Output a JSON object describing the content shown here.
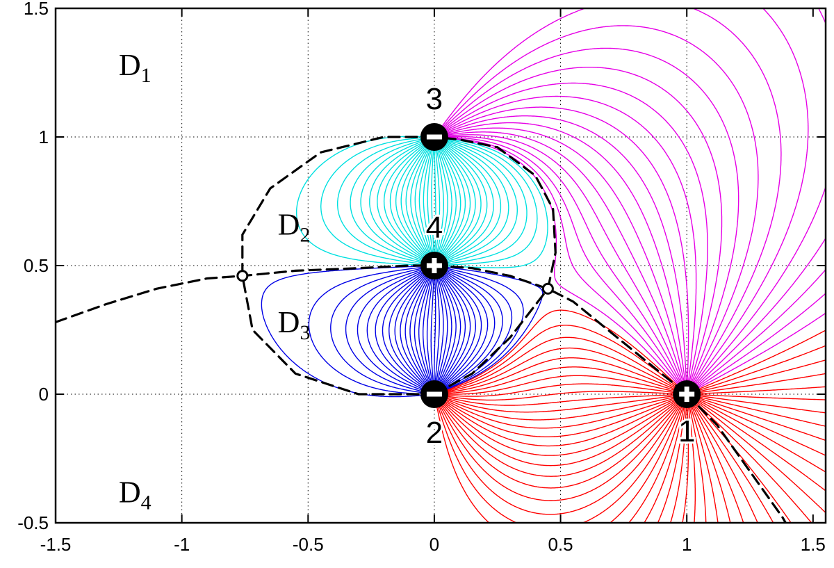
{
  "chart_data": {
    "type": "line",
    "title": "",
    "xlabel": "",
    "ylabel": "",
    "xlim": [
      -1.5,
      1.55
    ],
    "ylim": [
      -0.5,
      1.5
    ],
    "grid": "dotted",
    "x_ticks": [
      -1.5,
      -1,
      -0.5,
      0,
      0.5,
      1,
      1.5
    ],
    "x_tick_labels": [
      "-1.5",
      "-1",
      "-0.5",
      "0",
      "0.5",
      "1",
      "1.5"
    ],
    "y_ticks": [
      -0.5,
      0,
      0.5,
      1,
      1.5
    ],
    "y_tick_labels": [
      "-0.5",
      "0",
      "0.5",
      "1",
      "1.5"
    ],
    "charges": [
      {
        "label": "1",
        "sign": "+",
        "x": 1.0,
        "y": 0.0
      },
      {
        "label": "2",
        "sign": "−",
        "x": 0.0,
        "y": 0.0
      },
      {
        "label": "3",
        "sign": "−",
        "x": 0.0,
        "y": 1.0
      },
      {
        "label": "4",
        "sign": "+",
        "x": 0.0,
        "y": 0.5
      }
    ],
    "regions": [
      {
        "main": "D",
        "sub": "1",
        "x": -1.25,
        "y": 1.24
      },
      {
        "main": "D",
        "sub": "2",
        "x": -0.62,
        "y": 0.62
      },
      {
        "main": "D",
        "sub": "3",
        "x": -0.62,
        "y": 0.24
      },
      {
        "main": "D",
        "sub": "4",
        "x": -1.25,
        "y": -0.42
      }
    ],
    "saddle_points": [
      {
        "x": -0.76,
        "y": 0.46
      },
      {
        "x": 0.45,
        "y": 0.41
      }
    ],
    "series": [
      {
        "family": "1→3",
        "color": "#e600e6",
        "lines": 36
      },
      {
        "family": "1→2",
        "color": "#ff0000",
        "lines": 36
      },
      {
        "family": "4→3",
        "color": "#00e0e0",
        "lines": 36
      },
      {
        "family": "4→2",
        "color": "#0000e6",
        "lines": 36
      },
      {
        "family": "separatrix",
        "color": "#000000",
        "style": "dashed"
      }
    ]
  }
}
